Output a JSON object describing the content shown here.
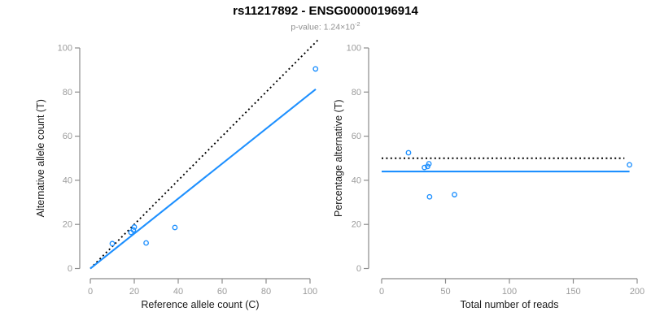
{
  "header": {
    "title": "rs11217892 - ENSG00000196914",
    "subtitle_prefix": "p-value: ",
    "subtitle_mantissa": "1.24",
    "subtitle_times": "×",
    "subtitle_base": "10",
    "subtitle_exponent": "-2"
  },
  "colors": {
    "accent_blue": "#1E90FF",
    "reference_line_black": "#000000",
    "axis_gray": "#8B8B8B",
    "tick_label_gray": "#9B9B9B",
    "axis_title_black": "#1A1A1A",
    "subtitle_gray": "#8F8F8F"
  },
  "chart_data": [
    {
      "type": "scatter",
      "panel": "left",
      "title": "",
      "xlabel": "Reference allele count (C)",
      "ylabel": "Alternative allele count (T)",
      "xlim": [
        0,
        100
      ],
      "ylim": [
        0,
        100
      ],
      "xticks": [
        0,
        20,
        40,
        60,
        80,
        100
      ],
      "yticks": [
        0,
        20,
        40,
        60,
        80,
        100
      ],
      "grid": false,
      "legend": "none",
      "points": [
        [
          10,
          11.3
        ],
        [
          18.5,
          16.4
        ],
        [
          19.6,
          17.5
        ],
        [
          20,
          18.8
        ],
        [
          25.4,
          11.6
        ],
        [
          38.5,
          18.6
        ],
        [
          102.5,
          90.5
        ]
      ],
      "lines": [
        {
          "name": "identity-dotted-line",
          "style": "dotted",
          "color": "#000000",
          "x": [
            0,
            103.5
          ],
          "y": [
            0,
            103.5
          ]
        },
        {
          "name": "fitted-regression-line",
          "style": "solid",
          "color": "#1E90FF",
          "x": [
            0,
            102.6
          ],
          "y": [
            0,
            81.3
          ]
        }
      ]
    },
    {
      "type": "scatter",
      "panel": "right",
      "title": "",
      "xlabel": "Total number of reads",
      "ylabel": "Percentage alternative (T)",
      "xlim": [
        0,
        200
      ],
      "ylim": [
        0,
        100
      ],
      "xticks": [
        0,
        50,
        100,
        150,
        200
      ],
      "yticks": [
        0,
        20,
        40,
        60,
        80,
        100
      ],
      "grid": false,
      "legend": "none",
      "points": [
        [
          21,
          52.5
        ],
        [
          33.5,
          45.8
        ],
        [
          36,
          46.3
        ],
        [
          37,
          47.5
        ],
        [
          37.5,
          32.5
        ],
        [
          57,
          33.5
        ],
        [
          194,
          47
        ]
      ],
      "lines": [
        {
          "name": "expected-50-percent-line",
          "style": "dotted",
          "color": "#000000",
          "x": [
            0,
            190
          ],
          "y": [
            50,
            50
          ]
        },
        {
          "name": "fitted-percentage-line",
          "style": "solid",
          "color": "#1E90FF",
          "x": [
            0,
            194
          ],
          "y": [
            44,
            44
          ]
        }
      ]
    }
  ]
}
